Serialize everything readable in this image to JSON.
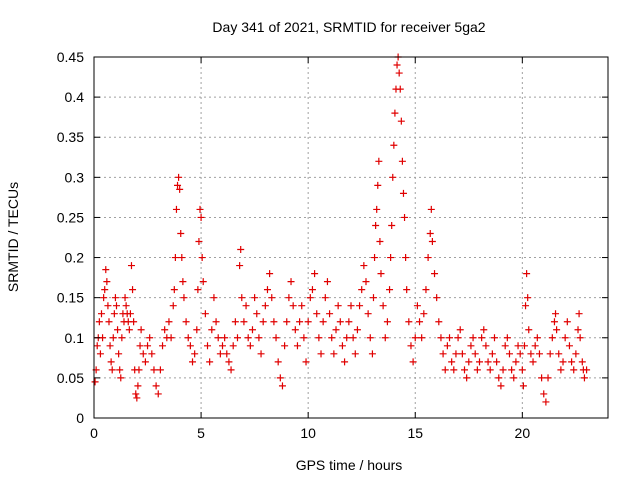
{
  "chart_data": {
    "type": "scatter",
    "title": "Day 341 of 2021, SRMTID for receiver 5ga2",
    "xlabel": "GPS time / hours",
    "ylabel": "SRMTID / TECUs",
    "xlim": [
      0,
      24
    ],
    "ylim": [
      0,
      0.45
    ],
    "x_ticks": [
      0,
      5,
      10,
      15,
      20
    ],
    "x_tick_labels": [
      "0",
      "5",
      "10",
      "15",
      "20"
    ],
    "y_ticks": [
      0,
      0.05,
      0.1,
      0.15,
      0.2,
      0.25,
      0.3,
      0.35,
      0.4,
      0.45
    ],
    "y_tick_labels": [
      "0",
      "0.05",
      "0.1",
      "0.15",
      "0.2",
      "0.25",
      "0.3",
      "0.35",
      "0.4",
      "0.45"
    ],
    "grid": true,
    "marker": "plus",
    "color": "#e00000",
    "series": [
      {
        "name": "SRMTID",
        "points": [
          [
            0.05,
            0.045
          ],
          [
            0.1,
            0.06
          ],
          [
            0.15,
            0.09
          ],
          [
            0.2,
            0.1
          ],
          [
            0.25,
            0.12
          ],
          [
            0.3,
            0.08
          ],
          [
            0.35,
            0.13
          ],
          [
            0.4,
            0.1
          ],
          [
            0.45,
            0.15
          ],
          [
            0.5,
            0.16
          ],
          [
            0.55,
            0.185
          ],
          [
            0.6,
            0.17
          ],
          [
            0.65,
            0.14
          ],
          [
            0.7,
            0.12
          ],
          [
            0.75,
            0.09
          ],
          [
            0.8,
            0.07
          ],
          [
            0.85,
            0.06
          ],
          [
            0.9,
            0.1
          ],
          [
            0.95,
            0.13
          ],
          [
            1.0,
            0.15
          ],
          [
            1.05,
            0.14
          ],
          [
            1.1,
            0.11
          ],
          [
            1.15,
            0.08
          ],
          [
            1.2,
            0.06
          ],
          [
            1.25,
            0.05
          ],
          [
            1.3,
            0.1
          ],
          [
            1.35,
            0.13
          ],
          [
            1.4,
            0.12
          ],
          [
            1.45,
            0.15
          ],
          [
            1.5,
            0.14
          ],
          [
            1.55,
            0.13
          ],
          [
            1.6,
            0.12
          ],
          [
            1.65,
            0.11
          ],
          [
            1.7,
            0.13
          ],
          [
            1.75,
            0.19
          ],
          [
            1.8,
            0.16
          ],
          [
            1.85,
            0.12
          ],
          [
            1.9,
            0.06
          ],
          [
            1.95,
            0.03
          ],
          [
            2.0,
            0.025
          ],
          [
            2.05,
            0.04
          ],
          [
            2.1,
            0.06
          ],
          [
            2.15,
            0.09
          ],
          [
            2.2,
            0.11
          ],
          [
            2.3,
            0.08
          ],
          [
            2.4,
            0.07
          ],
          [
            2.5,
            0.09
          ],
          [
            2.6,
            0.1
          ],
          [
            2.7,
            0.08
          ],
          [
            2.8,
            0.06
          ],
          [
            2.9,
            0.04
          ],
          [
            3.0,
            0.03
          ],
          [
            3.1,
            0.06
          ],
          [
            3.2,
            0.09
          ],
          [
            3.3,
            0.11
          ],
          [
            3.4,
            0.1
          ],
          [
            3.5,
            0.12
          ],
          [
            3.6,
            0.1
          ],
          [
            3.7,
            0.14
          ],
          [
            3.75,
            0.16
          ],
          [
            3.8,
            0.2
          ],
          [
            3.85,
            0.26
          ],
          [
            3.9,
            0.29
          ],
          [
            3.95,
            0.3
          ],
          [
            4.0,
            0.285
          ],
          [
            4.05,
            0.23
          ],
          [
            4.1,
            0.2
          ],
          [
            4.15,
            0.17
          ],
          [
            4.2,
            0.15
          ],
          [
            4.3,
            0.12
          ],
          [
            4.4,
            0.1
          ],
          [
            4.5,
            0.09
          ],
          [
            4.6,
            0.07
          ],
          [
            4.7,
            0.08
          ],
          [
            4.8,
            0.11
          ],
          [
            4.85,
            0.16
          ],
          [
            4.9,
            0.22
          ],
          [
            4.95,
            0.26
          ],
          [
            5.0,
            0.25
          ],
          [
            5.05,
            0.2
          ],
          [
            5.1,
            0.17
          ],
          [
            5.2,
            0.13
          ],
          [
            5.3,
            0.09
          ],
          [
            5.4,
            0.07
          ],
          [
            5.5,
            0.11
          ],
          [
            5.6,
            0.15
          ],
          [
            5.7,
            0.12
          ],
          [
            5.8,
            0.1
          ],
          [
            5.9,
            0.08
          ],
          [
            6.0,
            0.09
          ],
          [
            6.1,
            0.1
          ],
          [
            6.2,
            0.08
          ],
          [
            6.3,
            0.07
          ],
          [
            6.4,
            0.06
          ],
          [
            6.5,
            0.09
          ],
          [
            6.6,
            0.12
          ],
          [
            6.7,
            0.1
          ],
          [
            6.8,
            0.19
          ],
          [
            6.85,
            0.21
          ],
          [
            6.9,
            0.15
          ],
          [
            7.0,
            0.12
          ],
          [
            7.1,
            0.14
          ],
          [
            7.2,
            0.1
          ],
          [
            7.3,
            0.09
          ],
          [
            7.4,
            0.11
          ],
          [
            7.5,
            0.15
          ],
          [
            7.6,
            0.13
          ],
          [
            7.7,
            0.1
          ],
          [
            7.8,
            0.08
          ],
          [
            7.9,
            0.12
          ],
          [
            8.0,
            0.14
          ],
          [
            8.1,
            0.16
          ],
          [
            8.2,
            0.18
          ],
          [
            8.3,
            0.15
          ],
          [
            8.4,
            0.12
          ],
          [
            8.5,
            0.1
          ],
          [
            8.6,
            0.07
          ],
          [
            8.7,
            0.05
          ],
          [
            8.8,
            0.04
          ],
          [
            8.9,
            0.09
          ],
          [
            9.0,
            0.12
          ],
          [
            9.1,
            0.15
          ],
          [
            9.2,
            0.17
          ],
          [
            9.3,
            0.14
          ],
          [
            9.4,
            0.11
          ],
          [
            9.5,
            0.09
          ],
          [
            9.6,
            0.12
          ],
          [
            9.7,
            0.14
          ],
          [
            9.8,
            0.1
          ],
          [
            9.9,
            0.07
          ],
          [
            10.0,
            0.12
          ],
          [
            10.1,
            0.15
          ],
          [
            10.2,
            0.16
          ],
          [
            10.3,
            0.18
          ],
          [
            10.4,
            0.13
          ],
          [
            10.5,
            0.1
          ],
          [
            10.6,
            0.08
          ],
          [
            10.7,
            0.12
          ],
          [
            10.8,
            0.15
          ],
          [
            10.9,
            0.17
          ],
          [
            11.0,
            0.13
          ],
          [
            11.1,
            0.1
          ],
          [
            11.2,
            0.08
          ],
          [
            11.3,
            0.11
          ],
          [
            11.4,
            0.14
          ],
          [
            11.5,
            0.12
          ],
          [
            11.6,
            0.09
          ],
          [
            11.7,
            0.07
          ],
          [
            11.8,
            0.1
          ],
          [
            11.9,
            0.12
          ],
          [
            12.0,
            0.14
          ],
          [
            12.1,
            0.1
          ],
          [
            12.2,
            0.08
          ],
          [
            12.3,
            0.11
          ],
          [
            12.4,
            0.14
          ],
          [
            12.5,
            0.16
          ],
          [
            12.6,
            0.19
          ],
          [
            12.7,
            0.17
          ],
          [
            12.8,
            0.13
          ],
          [
            12.9,
            0.1
          ],
          [
            13.0,
            0.08
          ],
          [
            13.05,
            0.15
          ],
          [
            13.1,
            0.2
          ],
          [
            13.15,
            0.24
          ],
          [
            13.2,
            0.26
          ],
          [
            13.25,
            0.29
          ],
          [
            13.3,
            0.32
          ],
          [
            13.35,
            0.22
          ],
          [
            13.4,
            0.18
          ],
          [
            13.5,
            0.14
          ],
          [
            13.6,
            0.1
          ],
          [
            13.7,
            0.12
          ],
          [
            13.8,
            0.16
          ],
          [
            13.85,
            0.2
          ],
          [
            13.9,
            0.24
          ],
          [
            13.95,
            0.3
          ],
          [
            14.0,
            0.34
          ],
          [
            14.05,
            0.38
          ],
          [
            14.1,
            0.41
          ],
          [
            14.15,
            0.44
          ],
          [
            14.2,
            0.45
          ],
          [
            14.25,
            0.43
          ],
          [
            14.3,
            0.41
          ],
          [
            14.35,
            0.37
          ],
          [
            14.4,
            0.32
          ],
          [
            14.45,
            0.28
          ],
          [
            14.5,
            0.25
          ],
          [
            14.55,
            0.2
          ],
          [
            14.6,
            0.16
          ],
          [
            14.7,
            0.12
          ],
          [
            14.8,
            0.09
          ],
          [
            14.9,
            0.07
          ],
          [
            15.0,
            0.1
          ],
          [
            15.1,
            0.14
          ],
          [
            15.2,
            0.12
          ],
          [
            15.3,
            0.1
          ],
          [
            15.4,
            0.13
          ],
          [
            15.5,
            0.16
          ],
          [
            15.6,
            0.2
          ],
          [
            15.7,
            0.23
          ],
          [
            15.75,
            0.26
          ],
          [
            15.8,
            0.22
          ],
          [
            15.9,
            0.18
          ],
          [
            16.0,
            0.15
          ],
          [
            16.1,
            0.12
          ],
          [
            16.2,
            0.1
          ],
          [
            16.3,
            0.08
          ],
          [
            16.4,
            0.06
          ],
          [
            16.5,
            0.09
          ],
          [
            16.6,
            0.1
          ],
          [
            16.7,
            0.07
          ],
          [
            16.8,
            0.06
          ],
          [
            16.9,
            0.08
          ],
          [
            17.0,
            0.1
          ],
          [
            17.1,
            0.11
          ],
          [
            17.2,
            0.08
          ],
          [
            17.3,
            0.06
          ],
          [
            17.4,
            0.05
          ],
          [
            17.5,
            0.07
          ],
          [
            17.6,
            0.09
          ],
          [
            17.7,
            0.1
          ],
          [
            17.8,
            0.08
          ],
          [
            17.9,
            0.06
          ],
          [
            18.0,
            0.07
          ],
          [
            18.1,
            0.1
          ],
          [
            18.2,
            0.11
          ],
          [
            18.3,
            0.09
          ],
          [
            18.4,
            0.07
          ],
          [
            18.5,
            0.06
          ],
          [
            18.6,
            0.08
          ],
          [
            18.7,
            0.1
          ],
          [
            18.8,
            0.07
          ],
          [
            18.9,
            0.05
          ],
          [
            19.0,
            0.04
          ],
          [
            19.1,
            0.06
          ],
          [
            19.2,
            0.09
          ],
          [
            19.3,
            0.1
          ],
          [
            19.4,
            0.08
          ],
          [
            19.5,
            0.06
          ],
          [
            19.6,
            0.05
          ],
          [
            19.7,
            0.07
          ],
          [
            19.8,
            0.09
          ],
          [
            19.9,
            0.08
          ],
          [
            20.0,
            0.06
          ],
          [
            20.05,
            0.04
          ],
          [
            20.1,
            0.09
          ],
          [
            20.15,
            0.14
          ],
          [
            20.2,
            0.18
          ],
          [
            20.25,
            0.15
          ],
          [
            20.3,
            0.11
          ],
          [
            20.4,
            0.08
          ],
          [
            20.5,
            0.07
          ],
          [
            20.6,
            0.09
          ],
          [
            20.7,
            0.1
          ],
          [
            20.8,
            0.08
          ],
          [
            20.9,
            0.05
          ],
          [
            21.0,
            0.03
          ],
          [
            21.1,
            0.02
          ],
          [
            21.2,
            0.05
          ],
          [
            21.3,
            0.08
          ],
          [
            21.4,
            0.1
          ],
          [
            21.5,
            0.12
          ],
          [
            21.55,
            0.13
          ],
          [
            21.6,
            0.11
          ],
          [
            21.7,
            0.08
          ],
          [
            21.8,
            0.06
          ],
          [
            21.9,
            0.07
          ],
          [
            22.0,
            0.1
          ],
          [
            22.1,
            0.12
          ],
          [
            22.2,
            0.09
          ],
          [
            22.3,
            0.07
          ],
          [
            22.4,
            0.06
          ],
          [
            22.5,
            0.08
          ],
          [
            22.6,
            0.11
          ],
          [
            22.65,
            0.13
          ],
          [
            22.7,
            0.1
          ],
          [
            22.8,
            0.07
          ],
          [
            22.85,
            0.06
          ],
          [
            22.9,
            0.05
          ],
          [
            23.0,
            0.06
          ]
        ]
      }
    ]
  }
}
